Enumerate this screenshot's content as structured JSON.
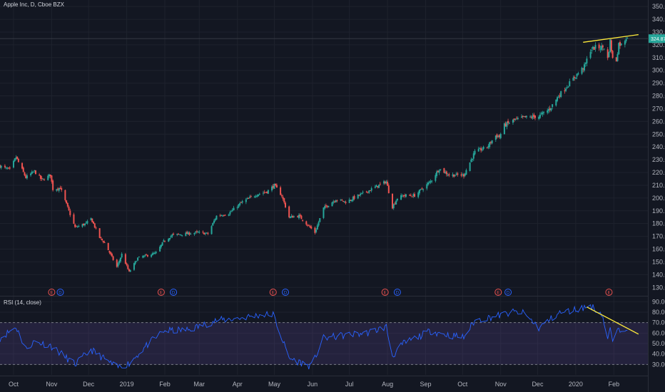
{
  "chart_data": {
    "type": "candlestick",
    "title": "Apple Inc, D, Cboe BZX",
    "price_axis": {
      "ticks": [
        "350.00",
        "340.00",
        "330.00",
        "320.00",
        "310.00",
        "300.00",
        "290.00",
        "280.00",
        "270.00",
        "260.00",
        "250.00",
        "240.00",
        "230.00",
        "220.00",
        "210.00",
        "200.00",
        "190.00",
        "180.00",
        "170.00",
        "160.00",
        "150.00",
        "140.00",
        "130.00"
      ],
      "range": [
        124,
        354
      ],
      "last_price": "324.87",
      "last_price_color": "#26a69a",
      "top_reference": 324.87
    },
    "time_axis": {
      "labels": [
        "Oct",
        "Nov",
        "Dec",
        "2019",
        "Feb",
        "Mar",
        "Apr",
        "May",
        "Jun",
        "Jul",
        "Aug",
        "Sep",
        "Oct",
        "Nov",
        "Dec",
        "2020",
        "Feb"
      ]
    },
    "price_waypoints": [
      {
        "date": "2018-09-20",
        "close": 225
      },
      {
        "date": "2018-09-28",
        "close": 222
      },
      {
        "date": "2018-10-03",
        "close": 232
      },
      {
        "date": "2018-10-11",
        "close": 216
      },
      {
        "date": "2018-10-18",
        "close": 221
      },
      {
        "date": "2018-10-24",
        "close": 214
      },
      {
        "date": "2018-10-31",
        "close": 218
      },
      {
        "date": "2018-11-02",
        "close": 207
      },
      {
        "date": "2018-11-08",
        "close": 208
      },
      {
        "date": "2018-11-20",
        "close": 177
      },
      {
        "date": "2018-11-29",
        "close": 180
      },
      {
        "date": "2018-12-03",
        "close": 184
      },
      {
        "date": "2018-12-10",
        "close": 169
      },
      {
        "date": "2018-12-14",
        "close": 165
      },
      {
        "date": "2018-12-24",
        "close": 146
      },
      {
        "date": "2018-12-28",
        "close": 156
      },
      {
        "date": "2019-01-03",
        "close": 142
      },
      {
        "date": "2019-01-10",
        "close": 153
      },
      {
        "date": "2019-01-25",
        "close": 157
      },
      {
        "date": "2019-01-31",
        "close": 166
      },
      {
        "date": "2019-02-07",
        "close": 171
      },
      {
        "date": "2019-02-28",
        "close": 173
      },
      {
        "date": "2019-03-08",
        "close": 172
      },
      {
        "date": "2019-03-15",
        "close": 186
      },
      {
        "date": "2019-03-25",
        "close": 188
      },
      {
        "date": "2019-04-05",
        "close": 197
      },
      {
        "date": "2019-04-17",
        "close": 203
      },
      {
        "date": "2019-04-25",
        "close": 205
      },
      {
        "date": "2019-05-01",
        "close": 210
      },
      {
        "date": "2019-05-07",
        "close": 202
      },
      {
        "date": "2019-05-13",
        "close": 185
      },
      {
        "date": "2019-05-21",
        "close": 186
      },
      {
        "date": "2019-06-03",
        "close": 173
      },
      {
        "date": "2019-06-10",
        "close": 192
      },
      {
        "date": "2019-06-20",
        "close": 199
      },
      {
        "date": "2019-06-28",
        "close": 197
      },
      {
        "date": "2019-07-15",
        "close": 205
      },
      {
        "date": "2019-07-31",
        "close": 213
      },
      {
        "date": "2019-08-05",
        "close": 193
      },
      {
        "date": "2019-08-09",
        "close": 200
      },
      {
        "date": "2019-08-14",
        "close": 202
      },
      {
        "date": "2019-08-23",
        "close": 202
      },
      {
        "date": "2019-09-05",
        "close": 213
      },
      {
        "date": "2019-09-12",
        "close": 223
      },
      {
        "date": "2019-09-20",
        "close": 218
      },
      {
        "date": "2019-10-02",
        "close": 218
      },
      {
        "date": "2019-10-11",
        "close": 236
      },
      {
        "date": "2019-10-21",
        "close": 240
      },
      {
        "date": "2019-10-28",
        "close": 249
      },
      {
        "date": "2019-10-31",
        "close": 248
      },
      {
        "date": "2019-11-04",
        "close": 257
      },
      {
        "date": "2019-11-12",
        "close": 261
      },
      {
        "date": "2019-11-20",
        "close": 263
      },
      {
        "date": "2019-12-02",
        "close": 264
      },
      {
        "date": "2019-12-11",
        "close": 270
      },
      {
        "date": "2019-12-18",
        "close": 280
      },
      {
        "date": "2019-12-27",
        "close": 290
      },
      {
        "date": "2020-01-03",
        "close": 298
      },
      {
        "date": "2020-01-08",
        "close": 303
      },
      {
        "date": "2020-01-13",
        "close": 316
      },
      {
        "date": "2020-01-17",
        "close": 318
      },
      {
        "date": "2020-01-24",
        "close": 318
      },
      {
        "date": "2020-01-27",
        "close": 309
      },
      {
        "date": "2020-01-29",
        "close": 323
      },
      {
        "date": "2020-01-31",
        "close": 309
      },
      {
        "date": "2020-02-03",
        "close": 308
      },
      {
        "date": "2020-02-05",
        "close": 321
      },
      {
        "date": "2020-02-07",
        "close": 320
      },
      {
        "date": "2020-02-12",
        "close": 327
      }
    ],
    "price_trendline": {
      "from": [
        "2020-01-07",
        322
      ],
      "to": [
        "2020-02-21",
        328
      ],
      "color": "#ffeb3b"
    },
    "events": [
      {
        "date": "2018-11-01",
        "type": "E"
      },
      {
        "date": "2018-11-08",
        "type": "D"
      },
      {
        "date": "2019-01-29",
        "type": "E"
      },
      {
        "date": "2019-02-08",
        "type": "D"
      },
      {
        "date": "2019-04-30",
        "type": "E"
      },
      {
        "date": "2019-05-10",
        "type": "D"
      },
      {
        "date": "2019-07-30",
        "type": "E"
      },
      {
        "date": "2019-08-09",
        "type": "D"
      },
      {
        "date": "2019-10-30",
        "type": "E"
      },
      {
        "date": "2019-11-07",
        "type": "D"
      },
      {
        "date": "2020-01-28",
        "type": "E"
      }
    ],
    "rsi": {
      "label": "RSI (14, close)",
      "ticks": [
        "90.00",
        "80.00",
        "70.00",
        "60.00",
        "50.00",
        "40.00",
        "30.00"
      ],
      "range": [
        20,
        95
      ],
      "band": [
        30,
        70
      ],
      "line_color": "#2962ff",
      "band_color": "#7e57c2",
      "waypoints": [
        {
          "date": "2018-09-20",
          "value": 55
        },
        {
          "date": "2018-10-03",
          "value": 66
        },
        {
          "date": "2018-10-11",
          "value": 45
        },
        {
          "date": "2018-10-18",
          "value": 52
        },
        {
          "date": "2018-10-31",
          "value": 48
        },
        {
          "date": "2018-11-20",
          "value": 30
        },
        {
          "date": "2018-12-03",
          "value": 44
        },
        {
          "date": "2018-12-24",
          "value": 27
        },
        {
          "date": "2019-01-03",
          "value": 31
        },
        {
          "date": "2019-01-17",
          "value": 48
        },
        {
          "date": "2019-01-31",
          "value": 62
        },
        {
          "date": "2019-02-20",
          "value": 63
        },
        {
          "date": "2019-03-15",
          "value": 72
        },
        {
          "date": "2019-04-01",
          "value": 74
        },
        {
          "date": "2019-04-17",
          "value": 77
        },
        {
          "date": "2019-04-30",
          "value": 78
        },
        {
          "date": "2019-05-13",
          "value": 36
        },
        {
          "date": "2019-05-31",
          "value": 28
        },
        {
          "date": "2019-06-10",
          "value": 55
        },
        {
          "date": "2019-06-28",
          "value": 58
        },
        {
          "date": "2019-07-15",
          "value": 60
        },
        {
          "date": "2019-07-31",
          "value": 66
        },
        {
          "date": "2019-08-05",
          "value": 38
        },
        {
          "date": "2019-08-14",
          "value": 50
        },
        {
          "date": "2019-09-05",
          "value": 62
        },
        {
          "date": "2019-09-20",
          "value": 58
        },
        {
          "date": "2019-10-02",
          "value": 56
        },
        {
          "date": "2019-10-11",
          "value": 72
        },
        {
          "date": "2019-10-31",
          "value": 77
        },
        {
          "date": "2019-11-12",
          "value": 80
        },
        {
          "date": "2019-11-20",
          "value": 79
        },
        {
          "date": "2019-12-02",
          "value": 65
        },
        {
          "date": "2019-12-18",
          "value": 79
        },
        {
          "date": "2020-01-03",
          "value": 83
        },
        {
          "date": "2020-01-13",
          "value": 86
        },
        {
          "date": "2020-01-22",
          "value": 79
        },
        {
          "date": "2020-01-24",
          "value": 70
        },
        {
          "date": "2020-01-27",
          "value": 55
        },
        {
          "date": "2020-01-29",
          "value": 63
        },
        {
          "date": "2020-01-31",
          "value": 53
        },
        {
          "date": "2020-02-05",
          "value": 63
        },
        {
          "date": "2020-02-12",
          "value": 66
        }
      ],
      "trendline": {
        "from": [
          "2020-01-10",
          85
        ],
        "to": [
          "2020-02-21",
          59
        ],
        "color": "#ffeb3b"
      }
    },
    "up_color": "#26a69a",
    "down_color": "#ef5350",
    "grid": true,
    "legend": "top-left"
  }
}
